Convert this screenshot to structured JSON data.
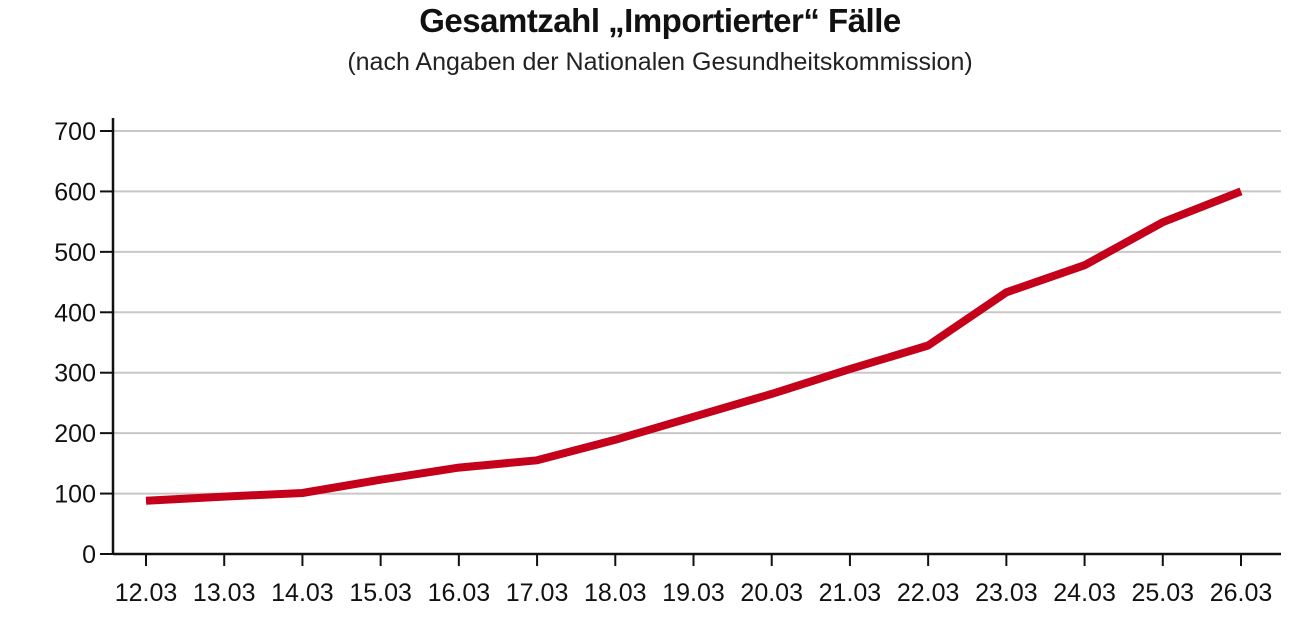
{
  "chart_data": {
    "type": "line",
    "title": "Gesamtzahl „Importierter“ Fälle",
    "subtitle": "(nach Angaben der Nationalen Gesundheitskommission)",
    "xlabel": "",
    "ylabel": "",
    "categories": [
      "12.03",
      "13.03",
      "14.03",
      "15.03",
      "16.03",
      "17.03",
      "18.03",
      "19.03",
      "20.03",
      "21.03",
      "22.03",
      "23.03",
      "24.03",
      "25.03",
      "26.03"
    ],
    "yticks": [
      0,
      100,
      200,
      300,
      400,
      500,
      600,
      700
    ],
    "ylim": [
      0,
      700
    ],
    "grid": true,
    "legend": "none",
    "line_color": "#c4001a",
    "series": [
      {
        "values": [
          88,
          95,
          101,
          123,
          143,
          155,
          189,
          227,
          265,
          306,
          345,
          433,
          478,
          549,
          600
        ]
      }
    ]
  }
}
